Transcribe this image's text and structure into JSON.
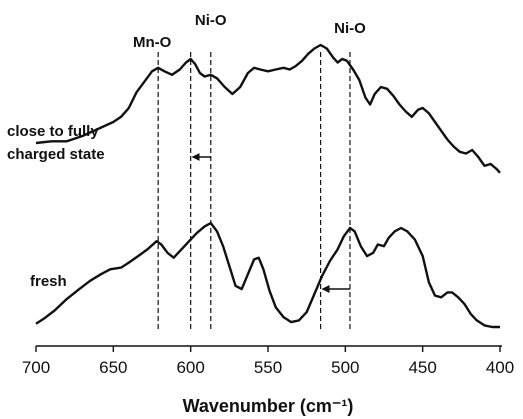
{
  "chart_data": {
    "type": "line",
    "title": "",
    "xlabel": "Wavenumber (cm⁻¹)",
    "ylabel": "",
    "xlim": [
      700,
      400
    ],
    "x_reversed": true,
    "xticks": [
      700,
      650,
      600,
      550,
      500,
      450,
      400
    ],
    "y_axis_shown": false,
    "grid": false,
    "colors": {
      "line": "#111111",
      "reference_line": "#111111"
    },
    "series": [
      {
        "name": "close to fully charged state",
        "points": [
          [
            700,
            0.48
          ],
          [
            690,
            0.49
          ],
          [
            680,
            0.49
          ],
          [
            670,
            0.52
          ],
          [
            660,
            0.56
          ],
          [
            650,
            0.6
          ],
          [
            645,
            0.63
          ],
          [
            640,
            0.68
          ],
          [
            635,
            0.77
          ],
          [
            630,
            0.83
          ],
          [
            625,
            0.89
          ],
          [
            621,
            0.91
          ],
          [
            617,
            0.89
          ],
          [
            612,
            0.87
          ],
          [
            607,
            0.9
          ],
          [
            603,
            0.94
          ],
          [
            600,
            0.96
          ],
          [
            597,
            0.93
          ],
          [
            594,
            0.88
          ],
          [
            591,
            0.86
          ],
          [
            587,
            0.87
          ],
          [
            583,
            0.85
          ],
          [
            578,
            0.8
          ],
          [
            573,
            0.76
          ],
          [
            568,
            0.8
          ],
          [
            563,
            0.88
          ],
          [
            559,
            0.91
          ],
          [
            555,
            0.9
          ],
          [
            550,
            0.89
          ],
          [
            545,
            0.9
          ],
          [
            540,
            0.91
          ],
          [
            536,
            0.9
          ],
          [
            532,
            0.92
          ],
          [
            528,
            0.95
          ],
          [
            524,
            0.99
          ],
          [
            520,
            1.02
          ],
          [
            516,
            1.04
          ],
          [
            512,
            1.02
          ],
          [
            508,
            0.97
          ],
          [
            505,
            0.94
          ],
          [
            502,
            0.96
          ],
          [
            499,
            0.95
          ],
          [
            495,
            0.9
          ],
          [
            491,
            0.84
          ],
          [
            487,
            0.74
          ],
          [
            484,
            0.7
          ],
          [
            481,
            0.76
          ],
          [
            477,
            0.8
          ],
          [
            473,
            0.79
          ],
          [
            469,
            0.75
          ],
          [
            465,
            0.7
          ],
          [
            461,
            0.66
          ],
          [
            457,
            0.63
          ],
          [
            453,
            0.67
          ],
          [
            450,
            0.68
          ],
          [
            446,
            0.65
          ],
          [
            442,
            0.6
          ],
          [
            438,
            0.55
          ],
          [
            434,
            0.5
          ],
          [
            430,
            0.46
          ],
          [
            426,
            0.43
          ],
          [
            422,
            0.42
          ],
          [
            418,
            0.44
          ],
          [
            414,
            0.4
          ],
          [
            410,
            0.35
          ],
          [
            406,
            0.36
          ],
          [
            402,
            0.33
          ],
          [
            400,
            0.31
          ]
        ]
      },
      {
        "name": "fresh",
        "points": [
          [
            700,
            0.02
          ],
          [
            695,
            0.05
          ],
          [
            688,
            0.1
          ],
          [
            680,
            0.17
          ],
          [
            672,
            0.23
          ],
          [
            665,
            0.28
          ],
          [
            658,
            0.32
          ],
          [
            652,
            0.35
          ],
          [
            645,
            0.36
          ],
          [
            640,
            0.39
          ],
          [
            634,
            0.43
          ],
          [
            628,
            0.47
          ],
          [
            622,
            0.52
          ],
          [
            619,
            0.5
          ],
          [
            615,
            0.45
          ],
          [
            611,
            0.42
          ],
          [
            606,
            0.47
          ],
          [
            601,
            0.52
          ],
          [
            596,
            0.57
          ],
          [
            591,
            0.61
          ],
          [
            587,
            0.63
          ],
          [
            583,
            0.58
          ],
          [
            579,
            0.49
          ],
          [
            575,
            0.37
          ],
          [
            571,
            0.25
          ],
          [
            567,
            0.23
          ],
          [
            563,
            0.32
          ],
          [
            559,
            0.41
          ],
          [
            556,
            0.42
          ],
          [
            553,
            0.35
          ],
          [
            549,
            0.22
          ],
          [
            545,
            0.12
          ],
          [
            540,
            0.06
          ],
          [
            535,
            0.03
          ],
          [
            530,
            0.04
          ],
          [
            525,
            0.09
          ],
          [
            520,
            0.2
          ],
          [
            515,
            0.31
          ],
          [
            510,
            0.4
          ],
          [
            505,
            0.47
          ],
          [
            501,
            0.55
          ],
          [
            497,
            0.6
          ],
          [
            494,
            0.58
          ],
          [
            490,
            0.49
          ],
          [
            486,
            0.43
          ],
          [
            482,
            0.45
          ],
          [
            479,
            0.5
          ],
          [
            475,
            0.49
          ],
          [
            472,
            0.54
          ],
          [
            468,
            0.58
          ],
          [
            464,
            0.6
          ],
          [
            460,
            0.58
          ],
          [
            455,
            0.53
          ],
          [
            450,
            0.43
          ],
          [
            446,
            0.27
          ],
          [
            442,
            0.19
          ],
          [
            438,
            0.18
          ],
          [
            434,
            0.21
          ],
          [
            431,
            0.21
          ],
          [
            427,
            0.18
          ],
          [
            423,
            0.14
          ],
          [
            419,
            0.08
          ],
          [
            415,
            0.04
          ],
          [
            410,
            0.01
          ],
          [
            405,
            0.0
          ],
          [
            400,
            0.0
          ]
        ]
      }
    ],
    "reference_lines": [
      {
        "x": 621,
        "label": "Mn-O"
      },
      {
        "x": 600,
        "label": ""
      },
      {
        "x": 587,
        "label": "Ni-O"
      },
      {
        "x": 516,
        "label": ""
      },
      {
        "x": 497,
        "label": "Ni-O"
      }
    ],
    "arrows": [
      {
        "from": 587,
        "to": 600
      },
      {
        "from": 497,
        "to": 516
      }
    ]
  }
}
